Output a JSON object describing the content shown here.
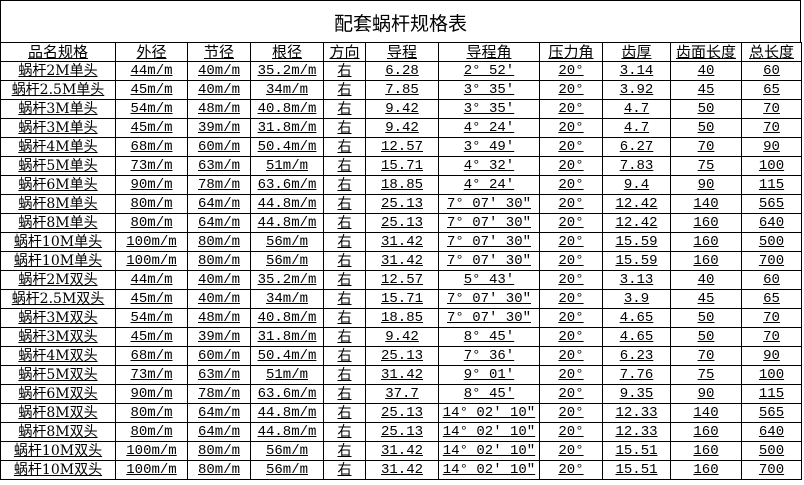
{
  "title": "配套蜗杆规格表",
  "columns": [
    "品名规格",
    "外径",
    "节径",
    "根径",
    "方向",
    "导程",
    "导程角",
    "压力角",
    "齿厚",
    "齿面长度",
    "总长度"
  ],
  "rows": [
    [
      "蜗杆2M单头",
      "44m/m",
      "40m/m",
      "35.2m/m",
      "右",
      "6.28",
      "2° 52′",
      "20°",
      "3.14",
      "40",
      "60"
    ],
    [
      "蜗杆2.5M单头",
      "45m/m",
      "40m/m",
      "34m/m",
      "右",
      "7.85",
      "3° 35′",
      "20°",
      "3.92",
      "45",
      "65"
    ],
    [
      "蜗杆3M单头",
      "54m/m",
      "48m/m",
      "40.8m/m",
      "右",
      "9.42",
      "3° 35′",
      "20°",
      "4.7",
      "50",
      "70"
    ],
    [
      "蜗杆3M单头",
      "45m/m",
      "39m/m",
      "31.8m/m",
      "右",
      "9.42",
      "4° 24′",
      "20°",
      "4.7",
      "50",
      "70"
    ],
    [
      "蜗杆4M单头",
      "68m/m",
      "60m/m",
      "50.4m/m",
      "右",
      "12.57",
      "3° 49′",
      "20°",
      "6.27",
      "70",
      "90"
    ],
    [
      "蜗杆5M单头",
      "73m/m",
      "63m/m",
      "51m/m",
      "右",
      "15.71",
      "4° 32′",
      "20°",
      "7.83",
      "75",
      "100"
    ],
    [
      "蜗杆6M单头",
      "90m/m",
      "78m/m",
      "63.6m/m",
      "右",
      "18.85",
      "4° 24′",
      "20°",
      "9.4",
      "90",
      "115"
    ],
    [
      "蜗杆8M单头",
      "80m/m",
      "64m/m",
      "44.8m/m",
      "右",
      "25.13",
      "7° 07′ 30″",
      "20°",
      "12.42",
      "140",
      "565"
    ],
    [
      "蜗杆8M单头",
      "80m/m",
      "64m/m",
      "44.8m/m",
      "右",
      "25.13",
      "7° 07′ 30″",
      "20°",
      "12.42",
      "160",
      "640"
    ],
    [
      "蜗杆10M单头",
      "100m/m",
      "80m/m",
      "56m/m",
      "右",
      "31.42",
      "7° 07′ 30″",
      "20°",
      "15.59",
      "160",
      "500"
    ],
    [
      "蜗杆10M单头",
      "100m/m",
      "80m/m",
      "56m/m",
      "右",
      "31.42",
      "7° 07′ 30″",
      "20°",
      "15.59",
      "160",
      "700"
    ],
    [
      "蜗杆2M双头",
      "44m/m",
      "40m/m",
      "35.2m/m",
      "右",
      "12.57",
      "5° 43′",
      "20°",
      "3.13",
      "40",
      "60"
    ],
    [
      "蜗杆2.5M双头",
      "45m/m",
      "40m/m",
      "34m/m",
      "右",
      "15.71",
      "7° 07′ 30″",
      "20°",
      "3.9",
      "45",
      "65"
    ],
    [
      "蜗杆3M双头",
      "54m/m",
      "48m/m",
      "40.8m/m",
      "右",
      "18.85",
      "7° 07′ 30″",
      "20°",
      "4.65",
      "50",
      "70"
    ],
    [
      "蜗杆3M双头",
      "45m/m",
      "39m/m",
      "31.8m/m",
      "右",
      "9.42",
      "8° 45′",
      "20°",
      "4.65",
      "50",
      "70"
    ],
    [
      "蜗杆4M双头",
      "68m/m",
      "60m/m",
      "50.4m/m",
      "右",
      "25.13",
      "7° 36′",
      "20°",
      "6.23",
      "70",
      "90"
    ],
    [
      "蜗杆5M双头",
      "73m/m",
      "63m/m",
      "51m/m",
      "右",
      "31.42",
      "9° 01′",
      "20°",
      "7.76",
      "75",
      "100"
    ],
    [
      "蜗杆6M双头",
      "90m/m",
      "78m/m",
      "63.6m/m",
      "右",
      "37.7",
      "8° 45′",
      "20°",
      "9.35",
      "90",
      "115"
    ],
    [
      "蜗杆8M双头",
      "80m/m",
      "64m/m",
      "44.8m/m",
      "右",
      "25.13",
      "14° 02′ 10″",
      "20°",
      "12.33",
      "140",
      "565"
    ],
    [
      "蜗杆8M双头",
      "80m/m",
      "64m/m",
      "44.8m/m",
      "右",
      "25.13",
      "14° 02′ 10″",
      "20°",
      "12.33",
      "160",
      "640"
    ],
    [
      "蜗杆10M双头",
      "100m/m",
      "80m/m",
      "56m/m",
      "右",
      "31.42",
      "14° 02′ 10″",
      "20°",
      "15.51",
      "160",
      "500"
    ],
    [
      "蜗杆10M双头",
      "100m/m",
      "80m/m",
      "56m/m",
      "右",
      "31.42",
      "14° 02′ 10″",
      "20°",
      "15.51",
      "160",
      "700"
    ]
  ]
}
